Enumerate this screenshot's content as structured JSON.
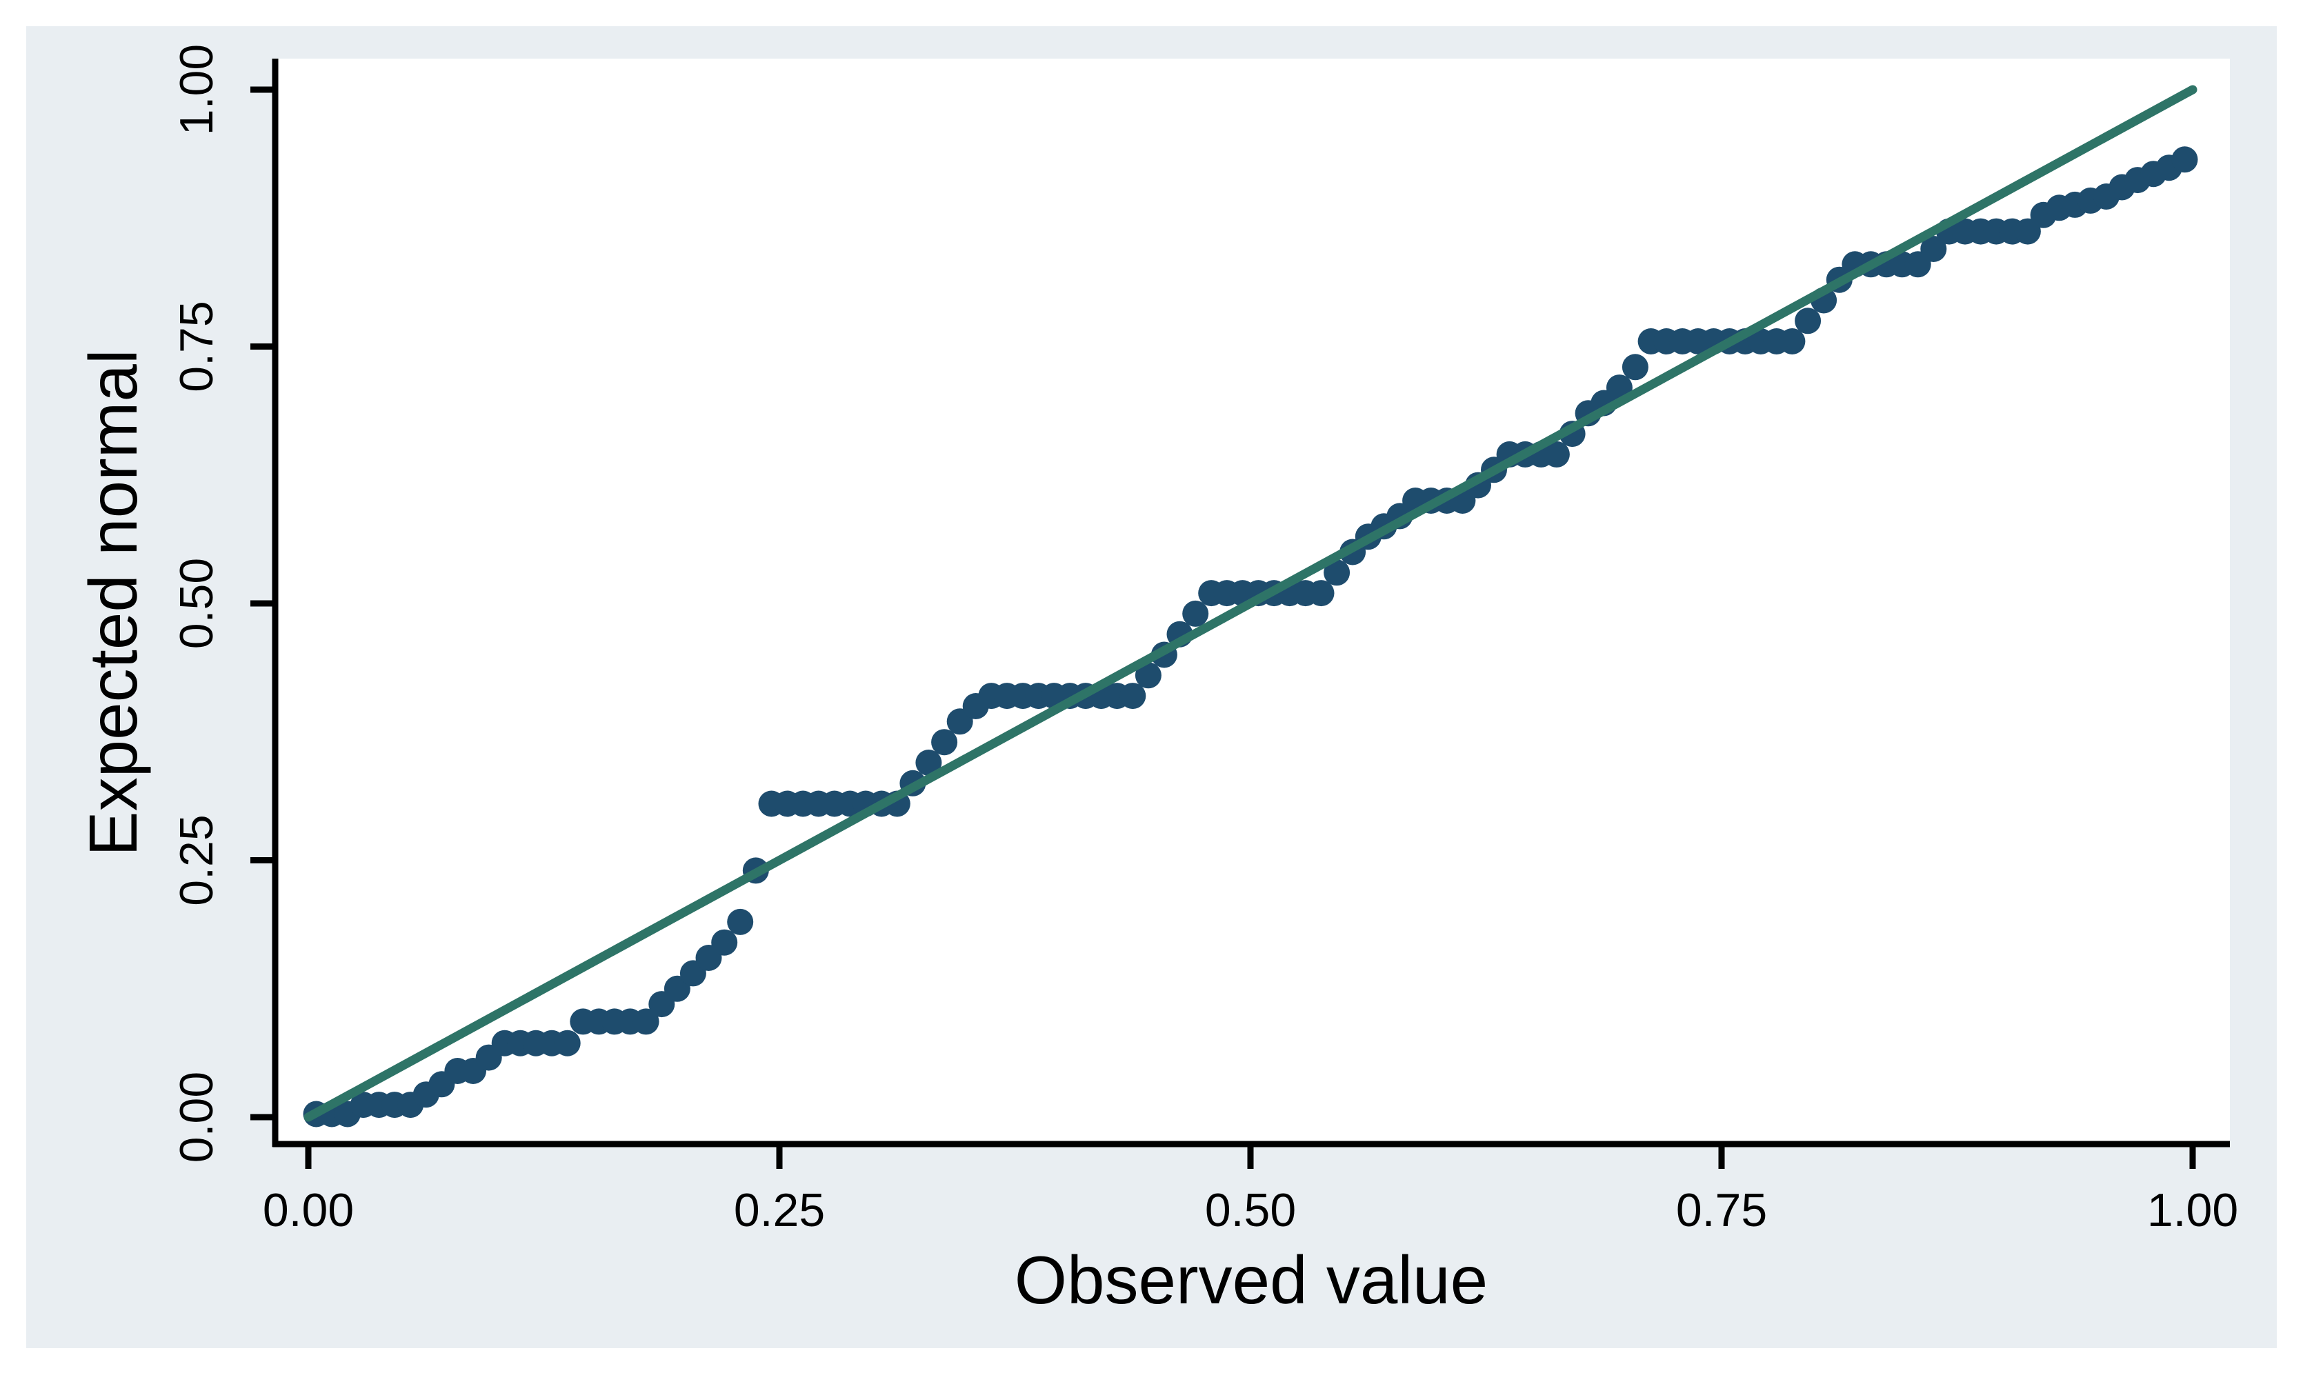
{
  "figure": {
    "kind": "normal probability plot (P-P)",
    "background_color": "#e9eef2",
    "plot_background_color": "#ffffff",
    "border_color": "#ffffff"
  },
  "colors": {
    "point": "#1e4c6d",
    "reference_line": "#2e7467",
    "axis": "#000000",
    "text": "#000000"
  },
  "axes": {
    "x": {
      "title": "Observed value",
      "tick_labels": [
        "0.00",
        "0.25",
        "0.50",
        "0.75",
        "1.00"
      ],
      "tick_values": [
        0,
        0.25,
        0.5,
        0.75,
        1.0
      ]
    },
    "y": {
      "title": "Expected normal",
      "tick_labels": [
        "0.00",
        "0.25",
        "0.50",
        "0.75",
        "1.00"
      ],
      "tick_values": [
        0,
        0.25,
        0.5,
        0.75,
        1.0
      ]
    }
  },
  "chart_data": {
    "type": "scatter",
    "title": "",
    "xlabel": "Observed value",
    "ylabel": "Expected normal",
    "xlim": [
      0,
      1
    ],
    "ylim": [
      0,
      1
    ],
    "grid": false,
    "legend": "none",
    "reference_line": {
      "from": [
        0,
        0
      ],
      "to": [
        1,
        1
      ]
    },
    "points": [
      [
        0.0042,
        0.003
      ],
      [
        0.0125,
        0.003
      ],
      [
        0.0208,
        0.003
      ],
      [
        0.0292,
        0.012
      ],
      [
        0.0375,
        0.012
      ],
      [
        0.0458,
        0.012
      ],
      [
        0.0542,
        0.012
      ],
      [
        0.0625,
        0.022
      ],
      [
        0.0708,
        0.032
      ],
      [
        0.0792,
        0.045
      ],
      [
        0.0875,
        0.045
      ],
      [
        0.0958,
        0.058
      ],
      [
        0.1042,
        0.072
      ],
      [
        0.1125,
        0.072
      ],
      [
        0.1208,
        0.072
      ],
      [
        0.1292,
        0.072
      ],
      [
        0.1375,
        0.072
      ],
      [
        0.1458,
        0.093
      ],
      [
        0.1542,
        0.093
      ],
      [
        0.1625,
        0.093
      ],
      [
        0.1708,
        0.093
      ],
      [
        0.1792,
        0.093
      ],
      [
        0.1875,
        0.11
      ],
      [
        0.1958,
        0.125
      ],
      [
        0.2042,
        0.14
      ],
      [
        0.2125,
        0.155
      ],
      [
        0.2208,
        0.17
      ],
      [
        0.2292,
        0.19
      ],
      [
        0.2375,
        0.24
      ],
      [
        0.2458,
        0.305
      ],
      [
        0.2542,
        0.305
      ],
      [
        0.2625,
        0.305
      ],
      [
        0.2708,
        0.305
      ],
      [
        0.2792,
        0.305
      ],
      [
        0.2875,
        0.305
      ],
      [
        0.2958,
        0.305
      ],
      [
        0.3042,
        0.305
      ],
      [
        0.3125,
        0.305
      ],
      [
        0.3208,
        0.325
      ],
      [
        0.3292,
        0.345
      ],
      [
        0.3375,
        0.365
      ],
      [
        0.3458,
        0.385
      ],
      [
        0.3542,
        0.4
      ],
      [
        0.3625,
        0.41
      ],
      [
        0.3708,
        0.41
      ],
      [
        0.3792,
        0.41
      ],
      [
        0.3875,
        0.41
      ],
      [
        0.3958,
        0.41
      ],
      [
        0.4042,
        0.41
      ],
      [
        0.4125,
        0.41
      ],
      [
        0.4208,
        0.41
      ],
      [
        0.4292,
        0.41
      ],
      [
        0.4375,
        0.41
      ],
      [
        0.4458,
        0.43
      ],
      [
        0.4542,
        0.45
      ],
      [
        0.4625,
        0.47
      ],
      [
        0.4708,
        0.49
      ],
      [
        0.4792,
        0.51
      ],
      [
        0.4875,
        0.51
      ],
      [
        0.4958,
        0.51
      ],
      [
        0.5042,
        0.51
      ],
      [
        0.5125,
        0.51
      ],
      [
        0.5208,
        0.51
      ],
      [
        0.5292,
        0.51
      ],
      [
        0.5375,
        0.51
      ],
      [
        0.5458,
        0.53
      ],
      [
        0.5542,
        0.55
      ],
      [
        0.5625,
        0.565
      ],
      [
        0.5708,
        0.575
      ],
      [
        0.5792,
        0.585
      ],
      [
        0.5875,
        0.6
      ],
      [
        0.5958,
        0.6
      ],
      [
        0.6042,
        0.6
      ],
      [
        0.6125,
        0.6
      ],
      [
        0.6208,
        0.615
      ],
      [
        0.6292,
        0.63
      ],
      [
        0.6375,
        0.645
      ],
      [
        0.6458,
        0.645
      ],
      [
        0.6542,
        0.645
      ],
      [
        0.6625,
        0.645
      ],
      [
        0.6708,
        0.665
      ],
      [
        0.6792,
        0.685
      ],
      [
        0.6875,
        0.695
      ],
      [
        0.6958,
        0.71
      ],
      [
        0.7042,
        0.73
      ],
      [
        0.7125,
        0.755
      ],
      [
        0.7208,
        0.755
      ],
      [
        0.7292,
        0.755
      ],
      [
        0.7375,
        0.755
      ],
      [
        0.7458,
        0.755
      ],
      [
        0.7542,
        0.755
      ],
      [
        0.7625,
        0.755
      ],
      [
        0.7708,
        0.755
      ],
      [
        0.7792,
        0.755
      ],
      [
        0.7875,
        0.755
      ],
      [
        0.7958,
        0.775
      ],
      [
        0.8042,
        0.795
      ],
      [
        0.8125,
        0.815
      ],
      [
        0.8208,
        0.83
      ],
      [
        0.8292,
        0.83
      ],
      [
        0.8375,
        0.83
      ],
      [
        0.8458,
        0.83
      ],
      [
        0.8542,
        0.83
      ],
      [
        0.8625,
        0.845
      ],
      [
        0.8708,
        0.862
      ],
      [
        0.8792,
        0.862
      ],
      [
        0.8875,
        0.862
      ],
      [
        0.8958,
        0.862
      ],
      [
        0.9042,
        0.862
      ],
      [
        0.9125,
        0.862
      ],
      [
        0.9208,
        0.878
      ],
      [
        0.9292,
        0.885
      ],
      [
        0.9375,
        0.888
      ],
      [
        0.9458,
        0.892
      ],
      [
        0.9542,
        0.896
      ],
      [
        0.9625,
        0.905
      ],
      [
        0.9708,
        0.912
      ],
      [
        0.9792,
        0.918
      ],
      [
        0.9875,
        0.924
      ],
      [
        0.9958,
        0.932
      ]
    ]
  }
}
